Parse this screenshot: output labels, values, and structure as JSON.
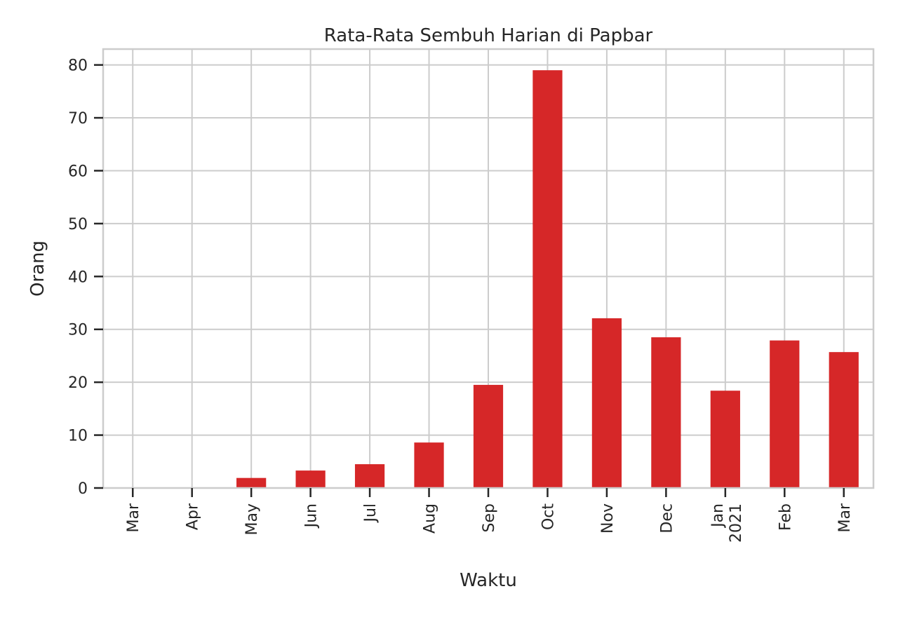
{
  "chart_data": {
    "type": "bar",
    "title": "Rata-Rata Sembuh Harian di Papbar",
    "xlabel": "Waktu",
    "ylabel": "Orang",
    "categories": [
      {
        "label": "Mar",
        "sub": ""
      },
      {
        "label": "Apr",
        "sub": ""
      },
      {
        "label": "May",
        "sub": ""
      },
      {
        "label": "Jun",
        "sub": ""
      },
      {
        "label": "Jul",
        "sub": ""
      },
      {
        "label": "Aug",
        "sub": ""
      },
      {
        "label": "Sep",
        "sub": ""
      },
      {
        "label": "Oct",
        "sub": ""
      },
      {
        "label": "Nov",
        "sub": ""
      },
      {
        "label": "Dec",
        "sub": ""
      },
      {
        "label": "Jan",
        "sub": "2021"
      },
      {
        "label": "Feb",
        "sub": ""
      },
      {
        "label": "Mar",
        "sub": ""
      }
    ],
    "values": [
      0,
      0,
      1.9,
      3.3,
      4.5,
      8.6,
      19.5,
      79.0,
      32.1,
      28.5,
      18.4,
      27.9,
      25.7
    ],
    "ylim": [
      0,
      83
    ],
    "yticks": [
      0,
      10,
      20,
      30,
      40,
      50,
      60,
      70,
      80
    ],
    "grid": true,
    "bar_color": "#d62728",
    "grid_color": "#cccccc",
    "axis_color": "#cccccc"
  }
}
